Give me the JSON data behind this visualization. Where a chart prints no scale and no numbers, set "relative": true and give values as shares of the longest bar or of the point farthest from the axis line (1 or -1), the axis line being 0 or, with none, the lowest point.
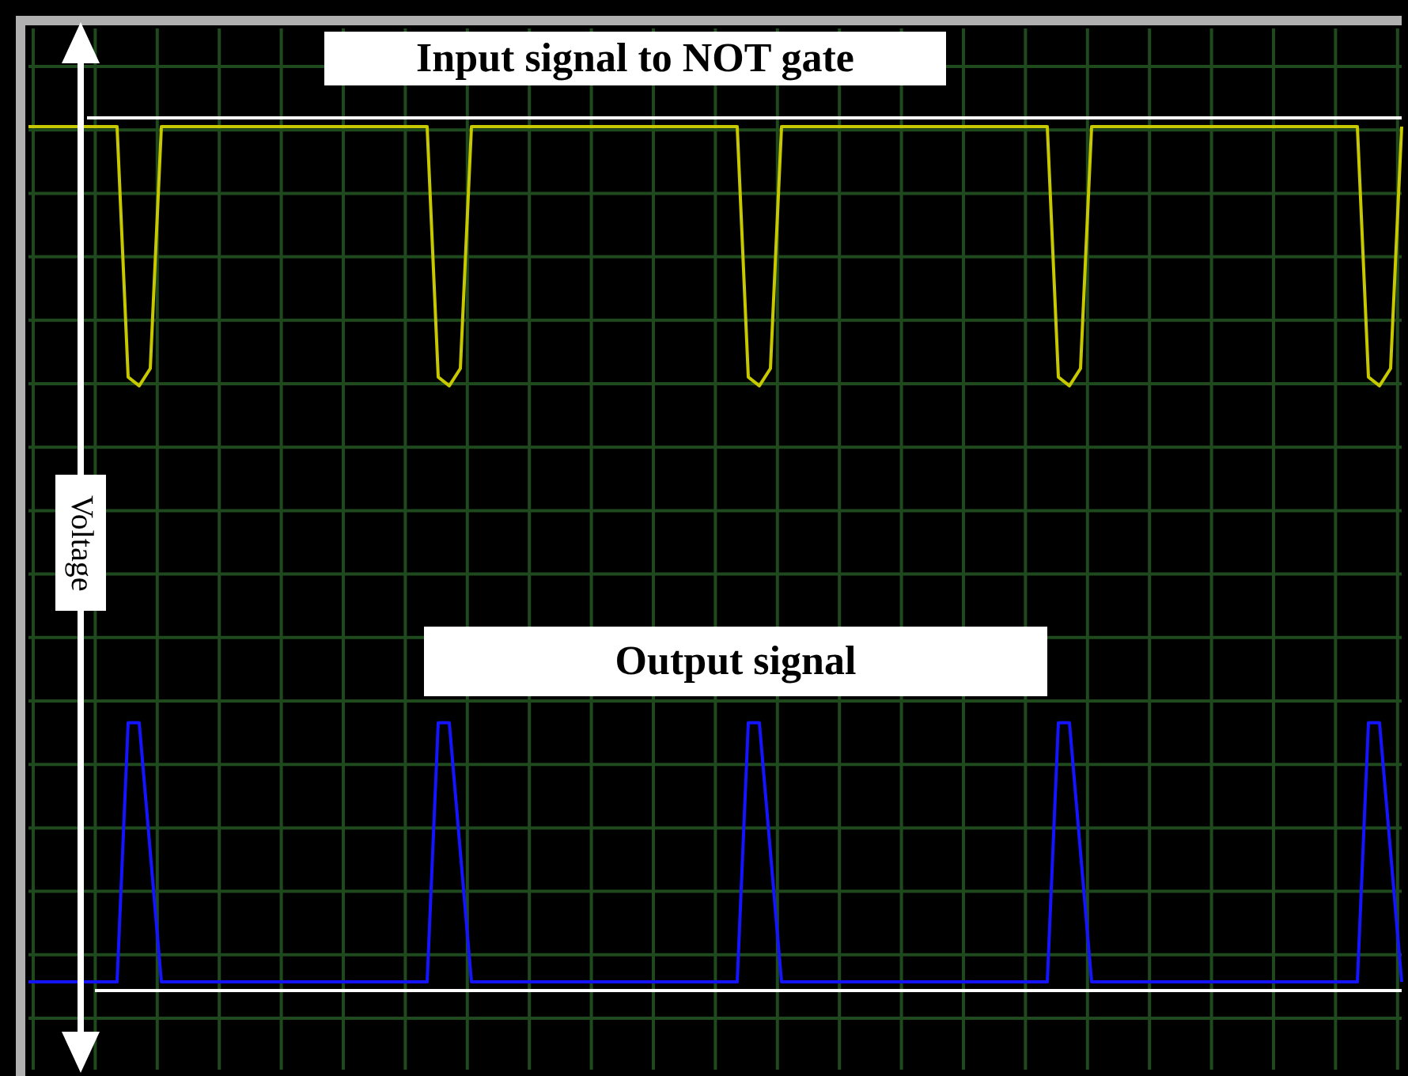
{
  "chart_data": {
    "type": "line",
    "relative": true,
    "grid": true,
    "legend": false,
    "marker": "none",
    "line_style": "solid",
    "ylabel": "Voltage",
    "categories": [
      null,
      null,
      null,
      null,
      null,
      null,
      null,
      null,
      null,
      null,
      null,
      null,
      null,
      null,
      null,
      null,
      null,
      null,
      null,
      null,
      null,
      null,
      null,
      null,
      null,
      null,
      null,
      null,
      null,
      null,
      null,
      null,
      null,
      null,
      null,
      null,
      null,
      null,
      null,
      null,
      null,
      null,
      null,
      null,
      null,
      null,
      null,
      null,
      null,
      null,
      null,
      null,
      null,
      null,
      null,
      null,
      null,
      null,
      null,
      null,
      null,
      null,
      null,
      null,
      null,
      null,
      null,
      null,
      null,
      null,
      null,
      null,
      null,
      null,
      null,
      null,
      null,
      null,
      null,
      null,
      null,
      null,
      null,
      null,
      null,
      null,
      null,
      null,
      null,
      null,
      null,
      null,
      null,
      null,
      null,
      null,
      null,
      null,
      null,
      null,
      null,
      null,
      null,
      null,
      null,
      null,
      null,
      null,
      null,
      null,
      null,
      null,
      null,
      null,
      null,
      null,
      null,
      null,
      null,
      null,
      null,
      null,
      null,
      null,
      null
    ],
    "ref_lines": [
      {
        "axis": "y",
        "value": 1.01,
        "color": "#ffffff"
      }
    ],
    "series": [
      {
        "name": "Input signal to NOT gate",
        "color": "#c8c800",
        "values": [
          1,
          1,
          1,
          1,
          1,
          1,
          1,
          1,
          1,
          0.71,
          0.7,
          0.72,
          1,
          1,
          1,
          1,
          1,
          1,
          1,
          1,
          1,
          1,
          1,
          1,
          1,
          1,
          1,
          1,
          1,
          1,
          1,
          1,
          1,
          1,
          1,
          1,
          1,
          0.71,
          0.7,
          0.72,
          1,
          1,
          1,
          1,
          1,
          1,
          1,
          1,
          1,
          1,
          1,
          1,
          1,
          1,
          1,
          1,
          1,
          1,
          1,
          1,
          1,
          1,
          1,
          1,
          1,
          0.71,
          0.7,
          0.72,
          1,
          1,
          1,
          1,
          1,
          1,
          1,
          1,
          1,
          1,
          1,
          1,
          1,
          1,
          1,
          1,
          1,
          1,
          1,
          1,
          1,
          1,
          1,
          1,
          1,
          0.71,
          0.7,
          0.72,
          1,
          1,
          1,
          1,
          1,
          1,
          1,
          1,
          1,
          1,
          1,
          1,
          1,
          1,
          1,
          1,
          1,
          1,
          1,
          1,
          1,
          1,
          1,
          1,
          1,
          0.71,
          0.7,
          0.72,
          1
        ]
      },
      {
        "name": "Output signal",
        "color": "#1414ff",
        "values": [
          0.01,
          0.01,
          0.01,
          0.01,
          0.01,
          0.01,
          0.01,
          0.01,
          0.01,
          0.31,
          0.31,
          0.16,
          0.01,
          0.01,
          0.01,
          0.01,
          0.01,
          0.01,
          0.01,
          0.01,
          0.01,
          0.01,
          0.01,
          0.01,
          0.01,
          0.01,
          0.01,
          0.01,
          0.01,
          0.01,
          0.01,
          0.01,
          0.01,
          0.01,
          0.01,
          0.01,
          0.01,
          0.31,
          0.31,
          0.16,
          0.01,
          0.01,
          0.01,
          0.01,
          0.01,
          0.01,
          0.01,
          0.01,
          0.01,
          0.01,
          0.01,
          0.01,
          0.01,
          0.01,
          0.01,
          0.01,
          0.01,
          0.01,
          0.01,
          0.01,
          0.01,
          0.01,
          0.01,
          0.01,
          0.01,
          0.31,
          0.31,
          0.16,
          0.01,
          0.01,
          0.01,
          0.01,
          0.01,
          0.01,
          0.01,
          0.01,
          0.01,
          0.01,
          0.01,
          0.01,
          0.01,
          0.01,
          0.01,
          0.01,
          0.01,
          0.01,
          0.01,
          0.01,
          0.01,
          0.01,
          0.01,
          0.01,
          0.01,
          0.31,
          0.31,
          0.16,
          0.01,
          0.01,
          0.01,
          0.01,
          0.01,
          0.01,
          0.01,
          0.01,
          0.01,
          0.01,
          0.01,
          0.01,
          0.01,
          0.01,
          0.01,
          0.01,
          0.01,
          0.01,
          0.01,
          0.01,
          0.01,
          0.01,
          0.01,
          0.01,
          0.01,
          0.31,
          0.31,
          0.16,
          0.01
        ]
      }
    ]
  }
}
